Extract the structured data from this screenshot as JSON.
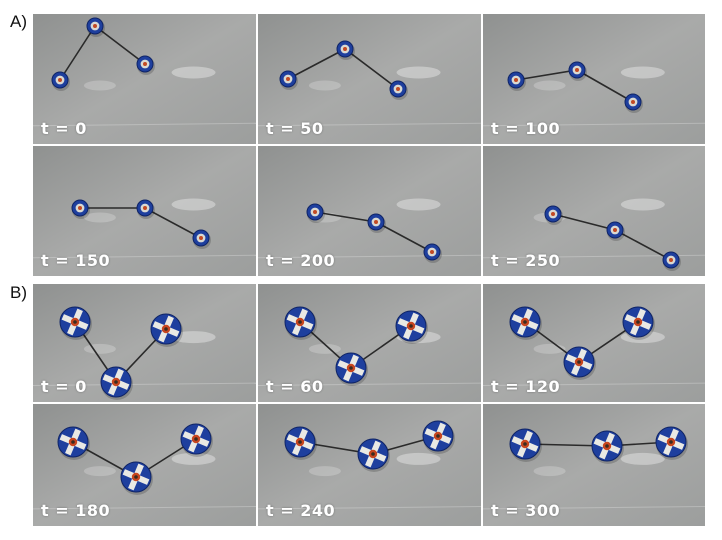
{
  "figure": {
    "section_a": {
      "label": "A)"
    },
    "section_b": {
      "label": "B)"
    },
    "panels_a": [
      {
        "label": "t = 0"
      },
      {
        "label": "t = 50"
      },
      {
        "label": "t = 100"
      },
      {
        "label": "t = 150"
      },
      {
        "label": "t = 200"
      },
      {
        "label": "t = 250"
      }
    ],
    "panels_b": [
      {
        "label": "t = 0"
      },
      {
        "label": "t = 60"
      },
      {
        "label": "t = 120"
      },
      {
        "label": "t = 180"
      },
      {
        "label": "t = 240"
      },
      {
        "label": "t = 300"
      }
    ]
  },
  "colors": {
    "floor": "#a9aaa9",
    "floor_dark": "#8f9190",
    "robot_blue": "#1e3f9e",
    "tether": "#2a2a2a",
    "label_text": "#ffffff"
  }
}
